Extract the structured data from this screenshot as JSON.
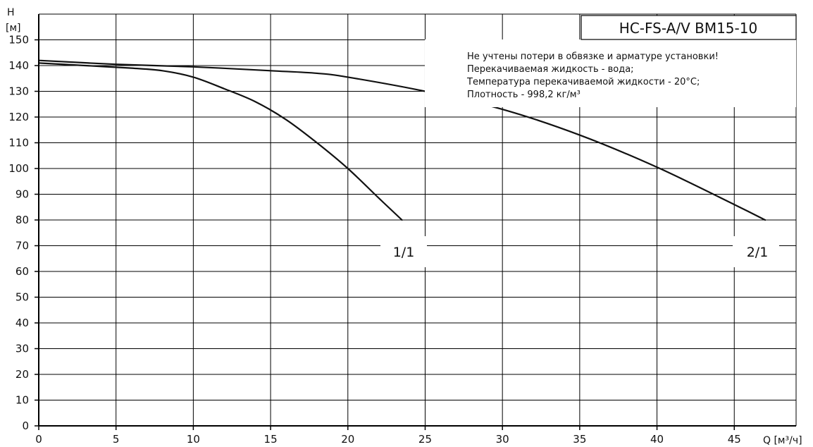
{
  "chart_data": {
    "type": "line",
    "title": "HC-FS-A/V BM15-10",
    "ylabel_line1": "H",
    "ylabel_line2": "[м]",
    "xlabel": "Q [м³/ч]",
    "xlim": [
      0,
      49
    ],
    "ylim": [
      0,
      160
    ],
    "x_ticks": [
      0,
      5,
      10,
      15,
      20,
      25,
      30,
      35,
      40,
      45
    ],
    "y_ticks": [
      0,
      10,
      20,
      30,
      40,
      50,
      60,
      70,
      80,
      90,
      100,
      110,
      120,
      130,
      140,
      150
    ],
    "grid": true,
    "notes": [
      "Не учтены потери в обвязке и арматуре установки!",
      "Перекачиваемая жидкость - вода;",
      "Температура перекачиваемой жидкости - 20°C;",
      "Плотность - 998,2 кг/м³"
    ],
    "series": [
      {
        "name": "1/1",
        "x": [
          0,
          3,
          6,
          8,
          10,
          12,
          14,
          16,
          18,
          20,
          22,
          23.5
        ],
        "y": [
          141,
          140,
          139,
          138,
          135.5,
          131,
          126,
          119,
          110,
          100,
          88.5,
          80
        ]
      },
      {
        "name": "2/1",
        "x": [
          0,
          5,
          10,
          15,
          18,
          20,
          25,
          30,
          35,
          40,
          45,
          47
        ],
        "y": [
          142,
          140.5,
          139.5,
          138,
          137,
          135.5,
          130,
          123,
          113,
          100.5,
          86,
          80
        ]
      }
    ]
  }
}
